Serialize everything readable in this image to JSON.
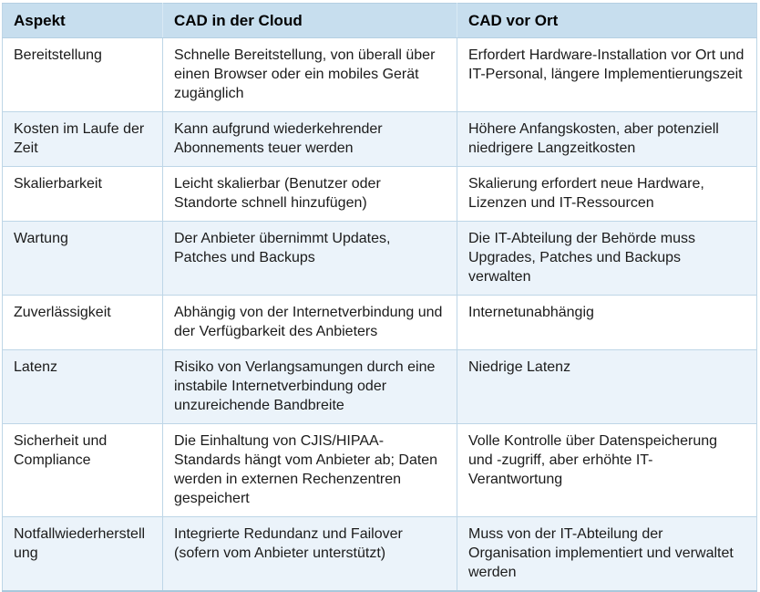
{
  "colors": {
    "header_bg": "#c7deee",
    "row_bg": "#ffffff",
    "row_alt_bg": "#ebf3fa",
    "border": "#bed6e7",
    "outer_border": "#a9c8dc",
    "text": "#1b1b1b"
  },
  "table": {
    "headers": {
      "aspect": "Aspekt",
      "cloud": "CAD in der Cloud",
      "onprem": "CAD vor Ort"
    },
    "rows": [
      {
        "aspect": "Bereitstellung",
        "cloud": "Schnelle Bereitstellung, von überall über einen Browser oder ein mobiles Gerät zugänglich",
        "onprem": "Erfordert Hardware-Installation vor Ort und IT-Personal, längere Implementierungszeit"
      },
      {
        "aspect": "Kosten im Laufe der Zeit",
        "cloud": "Kann aufgrund wiederkehrender Abonnements teuer werden",
        "onprem": "Höhere Anfangskosten, aber potenziell niedrigere Langzeitkosten"
      },
      {
        "aspect": "Skalierbarkeit",
        "cloud": "Leicht skalierbar (Benutzer oder Standorte schnell hinzufügen)",
        "onprem": "Skalierung erfordert neue Hardware, Lizenzen und IT-Ressourcen"
      },
      {
        "aspect": "Wartung",
        "cloud": "Der Anbieter übernimmt Updates, Patches und Backups",
        "onprem": "Die IT-Abteilung der Behörde muss Upgrades, Patches und Backups verwalten"
      },
      {
        "aspect": "Zuverlässigkeit",
        "cloud": "Abhängig von der Internetverbindung und der Verfügbarkeit des Anbieters",
        "onprem": "Internetunabhängig"
      },
      {
        "aspect": "Latenz",
        "cloud": "Risiko von Verlangsamungen durch eine instabile Internetverbindung oder unzureichende Bandbreite",
        "onprem": "Niedrige Latenz"
      },
      {
        "aspect": "Sicherheit und Compliance",
        "cloud": "Die Einhaltung von CJIS/HIPAA-Standards hängt vom Anbieter ab; Daten werden in externen Rechenzentren gespeichert",
        "onprem": "Volle Kontrolle über Datenspeicherung und -zugriff, aber erhöhte IT-Verantwortung"
      },
      {
        "aspect": "Notfallwiederherstellung",
        "cloud": "Integrierte Redundanz und Failover (sofern vom Anbieter unterstützt)",
        "onprem": "Muss von der IT-Abteilung der Organisation implementiert und verwaltet werden"
      }
    ]
  }
}
